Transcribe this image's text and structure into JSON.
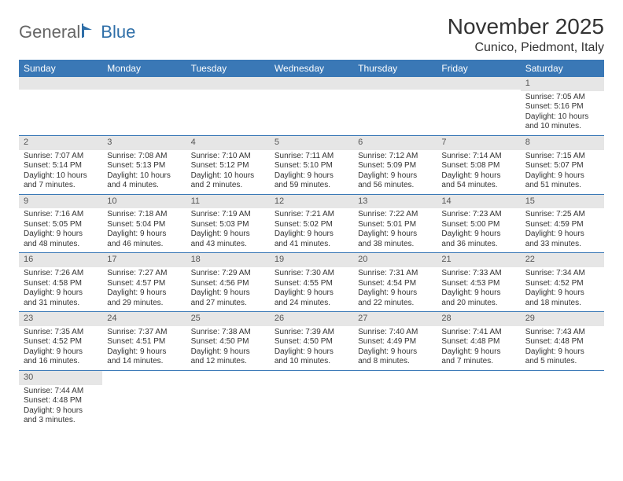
{
  "brand": {
    "general": "General",
    "blue": "Blue"
  },
  "title": "November 2025",
  "location": "Cunico, Piedmont, Italy",
  "colors": {
    "header_bg": "#3a78b6",
    "header_text": "#ffffff",
    "daynum_bg": "#e6e6e6",
    "cell_border": "#3a78b6",
    "text": "#333333",
    "background": "#ffffff"
  },
  "day_headers": [
    "Sunday",
    "Monday",
    "Tuesday",
    "Wednesday",
    "Thursday",
    "Friday",
    "Saturday"
  ],
  "weeks": [
    [
      {
        "day": "",
        "lines": []
      },
      {
        "day": "",
        "lines": []
      },
      {
        "day": "",
        "lines": []
      },
      {
        "day": "",
        "lines": []
      },
      {
        "day": "",
        "lines": []
      },
      {
        "day": "",
        "lines": []
      },
      {
        "day": "1",
        "lines": [
          "Sunrise: 7:05 AM",
          "Sunset: 5:16 PM",
          "Daylight: 10 hours and 10 minutes."
        ]
      }
    ],
    [
      {
        "day": "2",
        "lines": [
          "Sunrise: 7:07 AM",
          "Sunset: 5:14 PM",
          "Daylight: 10 hours and 7 minutes."
        ]
      },
      {
        "day": "3",
        "lines": [
          "Sunrise: 7:08 AM",
          "Sunset: 5:13 PM",
          "Daylight: 10 hours and 4 minutes."
        ]
      },
      {
        "day": "4",
        "lines": [
          "Sunrise: 7:10 AM",
          "Sunset: 5:12 PM",
          "Daylight: 10 hours and 2 minutes."
        ]
      },
      {
        "day": "5",
        "lines": [
          "Sunrise: 7:11 AM",
          "Sunset: 5:10 PM",
          "Daylight: 9 hours and 59 minutes."
        ]
      },
      {
        "day": "6",
        "lines": [
          "Sunrise: 7:12 AM",
          "Sunset: 5:09 PM",
          "Daylight: 9 hours and 56 minutes."
        ]
      },
      {
        "day": "7",
        "lines": [
          "Sunrise: 7:14 AM",
          "Sunset: 5:08 PM",
          "Daylight: 9 hours and 54 minutes."
        ]
      },
      {
        "day": "8",
        "lines": [
          "Sunrise: 7:15 AM",
          "Sunset: 5:07 PM",
          "Daylight: 9 hours and 51 minutes."
        ]
      }
    ],
    [
      {
        "day": "9",
        "lines": [
          "Sunrise: 7:16 AM",
          "Sunset: 5:05 PM",
          "Daylight: 9 hours and 48 minutes."
        ]
      },
      {
        "day": "10",
        "lines": [
          "Sunrise: 7:18 AM",
          "Sunset: 5:04 PM",
          "Daylight: 9 hours and 46 minutes."
        ]
      },
      {
        "day": "11",
        "lines": [
          "Sunrise: 7:19 AM",
          "Sunset: 5:03 PM",
          "Daylight: 9 hours and 43 minutes."
        ]
      },
      {
        "day": "12",
        "lines": [
          "Sunrise: 7:21 AM",
          "Sunset: 5:02 PM",
          "Daylight: 9 hours and 41 minutes."
        ]
      },
      {
        "day": "13",
        "lines": [
          "Sunrise: 7:22 AM",
          "Sunset: 5:01 PM",
          "Daylight: 9 hours and 38 minutes."
        ]
      },
      {
        "day": "14",
        "lines": [
          "Sunrise: 7:23 AM",
          "Sunset: 5:00 PM",
          "Daylight: 9 hours and 36 minutes."
        ]
      },
      {
        "day": "15",
        "lines": [
          "Sunrise: 7:25 AM",
          "Sunset: 4:59 PM",
          "Daylight: 9 hours and 33 minutes."
        ]
      }
    ],
    [
      {
        "day": "16",
        "lines": [
          "Sunrise: 7:26 AM",
          "Sunset: 4:58 PM",
          "Daylight: 9 hours and 31 minutes."
        ]
      },
      {
        "day": "17",
        "lines": [
          "Sunrise: 7:27 AM",
          "Sunset: 4:57 PM",
          "Daylight: 9 hours and 29 minutes."
        ]
      },
      {
        "day": "18",
        "lines": [
          "Sunrise: 7:29 AM",
          "Sunset: 4:56 PM",
          "Daylight: 9 hours and 27 minutes."
        ]
      },
      {
        "day": "19",
        "lines": [
          "Sunrise: 7:30 AM",
          "Sunset: 4:55 PM",
          "Daylight: 9 hours and 24 minutes."
        ]
      },
      {
        "day": "20",
        "lines": [
          "Sunrise: 7:31 AM",
          "Sunset: 4:54 PM",
          "Daylight: 9 hours and 22 minutes."
        ]
      },
      {
        "day": "21",
        "lines": [
          "Sunrise: 7:33 AM",
          "Sunset: 4:53 PM",
          "Daylight: 9 hours and 20 minutes."
        ]
      },
      {
        "day": "22",
        "lines": [
          "Sunrise: 7:34 AM",
          "Sunset: 4:52 PM",
          "Daylight: 9 hours and 18 minutes."
        ]
      }
    ],
    [
      {
        "day": "23",
        "lines": [
          "Sunrise: 7:35 AM",
          "Sunset: 4:52 PM",
          "Daylight: 9 hours and 16 minutes."
        ]
      },
      {
        "day": "24",
        "lines": [
          "Sunrise: 7:37 AM",
          "Sunset: 4:51 PM",
          "Daylight: 9 hours and 14 minutes."
        ]
      },
      {
        "day": "25",
        "lines": [
          "Sunrise: 7:38 AM",
          "Sunset: 4:50 PM",
          "Daylight: 9 hours and 12 minutes."
        ]
      },
      {
        "day": "26",
        "lines": [
          "Sunrise: 7:39 AM",
          "Sunset: 4:50 PM",
          "Daylight: 9 hours and 10 minutes."
        ]
      },
      {
        "day": "27",
        "lines": [
          "Sunrise: 7:40 AM",
          "Sunset: 4:49 PM",
          "Daylight: 9 hours and 8 minutes."
        ]
      },
      {
        "day": "28",
        "lines": [
          "Sunrise: 7:41 AM",
          "Sunset: 4:48 PM",
          "Daylight: 9 hours and 7 minutes."
        ]
      },
      {
        "day": "29",
        "lines": [
          "Sunrise: 7:43 AM",
          "Sunset: 4:48 PM",
          "Daylight: 9 hours and 5 minutes."
        ]
      }
    ],
    [
      {
        "day": "30",
        "lines": [
          "Sunrise: 7:44 AM",
          "Sunset: 4:48 PM",
          "Daylight: 9 hours and 3 minutes."
        ]
      },
      {
        "day": "",
        "lines": []
      },
      {
        "day": "",
        "lines": []
      },
      {
        "day": "",
        "lines": []
      },
      {
        "day": "",
        "lines": []
      },
      {
        "day": "",
        "lines": []
      },
      {
        "day": "",
        "lines": []
      }
    ]
  ]
}
